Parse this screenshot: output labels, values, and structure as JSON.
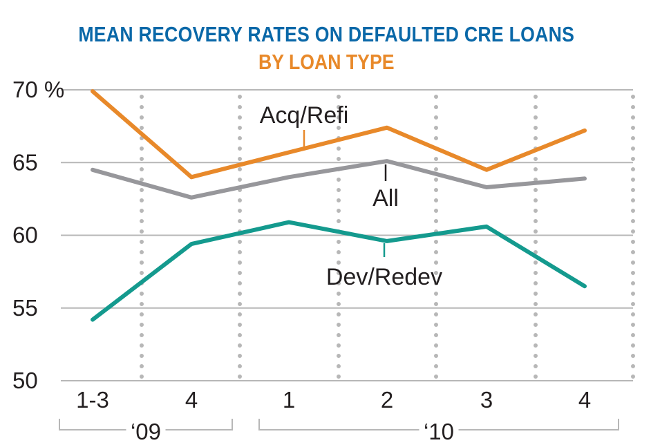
{
  "colors": {
    "title": "#0a68a8",
    "subtitle": "#e8892a",
    "acq_refi": "#e8892a",
    "all": "#97979b",
    "dev_redev": "#149a8e",
    "grid": "#b7b7b7",
    "separator": "#b7b7b7",
    "text": "#231f20"
  },
  "chart_data": {
    "type": "line",
    "title": "MEAN RECOVERY RATES ON DEFAULTED CRE LOANS",
    "subtitle": "BY LOAN TYPE",
    "categories": [
      "1-3",
      "4",
      "1",
      "2",
      "3",
      "4"
    ],
    "groups": [
      {
        "label": "‘09",
        "categories": [
          "1-3",
          "4"
        ]
      },
      {
        "label": "‘10",
        "categories": [
          "1",
          "2",
          "3",
          "4"
        ]
      }
    ],
    "series": [
      {
        "name": "Acq/Refi",
        "values": [
          69.9,
          64.0,
          65.7,
          67.4,
          64.5,
          67.2
        ]
      },
      {
        "name": "All",
        "values": [
          64.5,
          62.6,
          64.0,
          65.1,
          63.3,
          63.9
        ]
      },
      {
        "name": "Dev/Redev",
        "values": [
          54.2,
          59.4,
          60.9,
          59.6,
          60.6,
          56.5
        ]
      }
    ],
    "y_ticks": [
      "70 %",
      "65",
      "60",
      "55",
      "50"
    ],
    "ylim": [
      50,
      70
    ],
    "grid": true,
    "dotted_separators": true
  }
}
